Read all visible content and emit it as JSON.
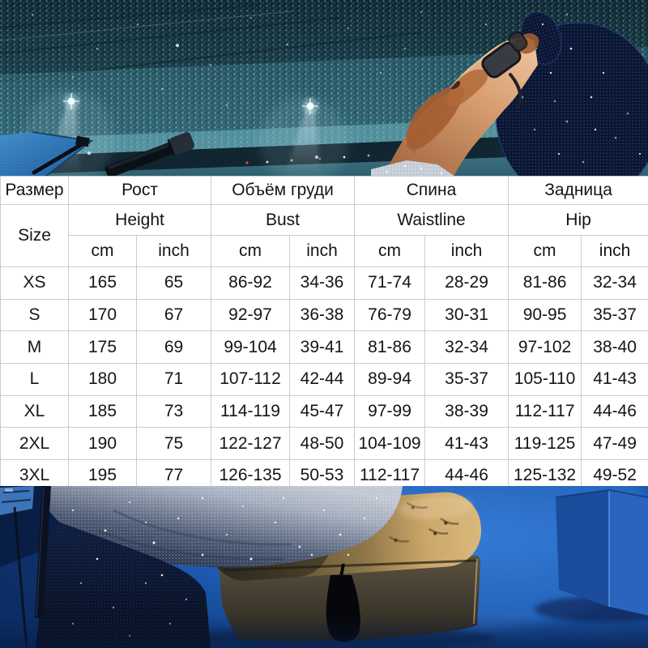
{
  "size_table": {
    "header_ru": [
      "Размер",
      "Рост",
      "Объём груди",
      "Спина",
      "Задница"
    ],
    "header_en": {
      "size_label": "Size",
      "measures": [
        "Height",
        "Bust",
        "Waistline",
        "Hip"
      ]
    },
    "units": [
      "cm",
      "inch",
      "cm",
      "inch",
      "cm",
      "inch",
      "cm",
      "inch"
    ],
    "rows": [
      {
        "size": "XS",
        "values": [
          "165",
          "65",
          "86-92",
          "34-36",
          "71-74",
          "28-29",
          "81-86",
          "32-34"
        ]
      },
      {
        "size": "S",
        "values": [
          "170",
          "67",
          "92-97",
          "36-38",
          "76-79",
          "30-31",
          "90-95",
          "35-37"
        ]
      },
      {
        "size": "M",
        "values": [
          "175",
          "69",
          "99-104",
          "39-41",
          "81-86",
          "32-34",
          "97-102",
          "38-40"
        ]
      },
      {
        "size": "L",
        "values": [
          "180",
          "71",
          "107-112",
          "42-44",
          "89-94",
          "35-37",
          "105-110",
          "41-43"
        ]
      },
      {
        "size": "XL",
        "values": [
          "185",
          "73",
          "114-119",
          "45-47",
          "97-99",
          "38-39",
          "112-117",
          "44-46"
        ]
      },
      {
        "size": "2XL",
        "values": [
          "190",
          "75",
          "122-127",
          "48-50",
          "104-109",
          "41-43",
          "119-125",
          "47-49"
        ]
      },
      {
        "size": "3XL",
        "values": [
          "195",
          "77",
          "126-135",
          "50-53",
          "112-117",
          "44-46",
          "125-132",
          "49-52"
        ]
      }
    ]
  },
  "colors": {
    "table_grid": "#c6ced6",
    "table_text": "#151515",
    "stadium_teal": "#2e6271",
    "sequin_navy": "#0a142e",
    "carpet_blue": "#1d5ab0",
    "bench_tan": "#cda76a"
  }
}
